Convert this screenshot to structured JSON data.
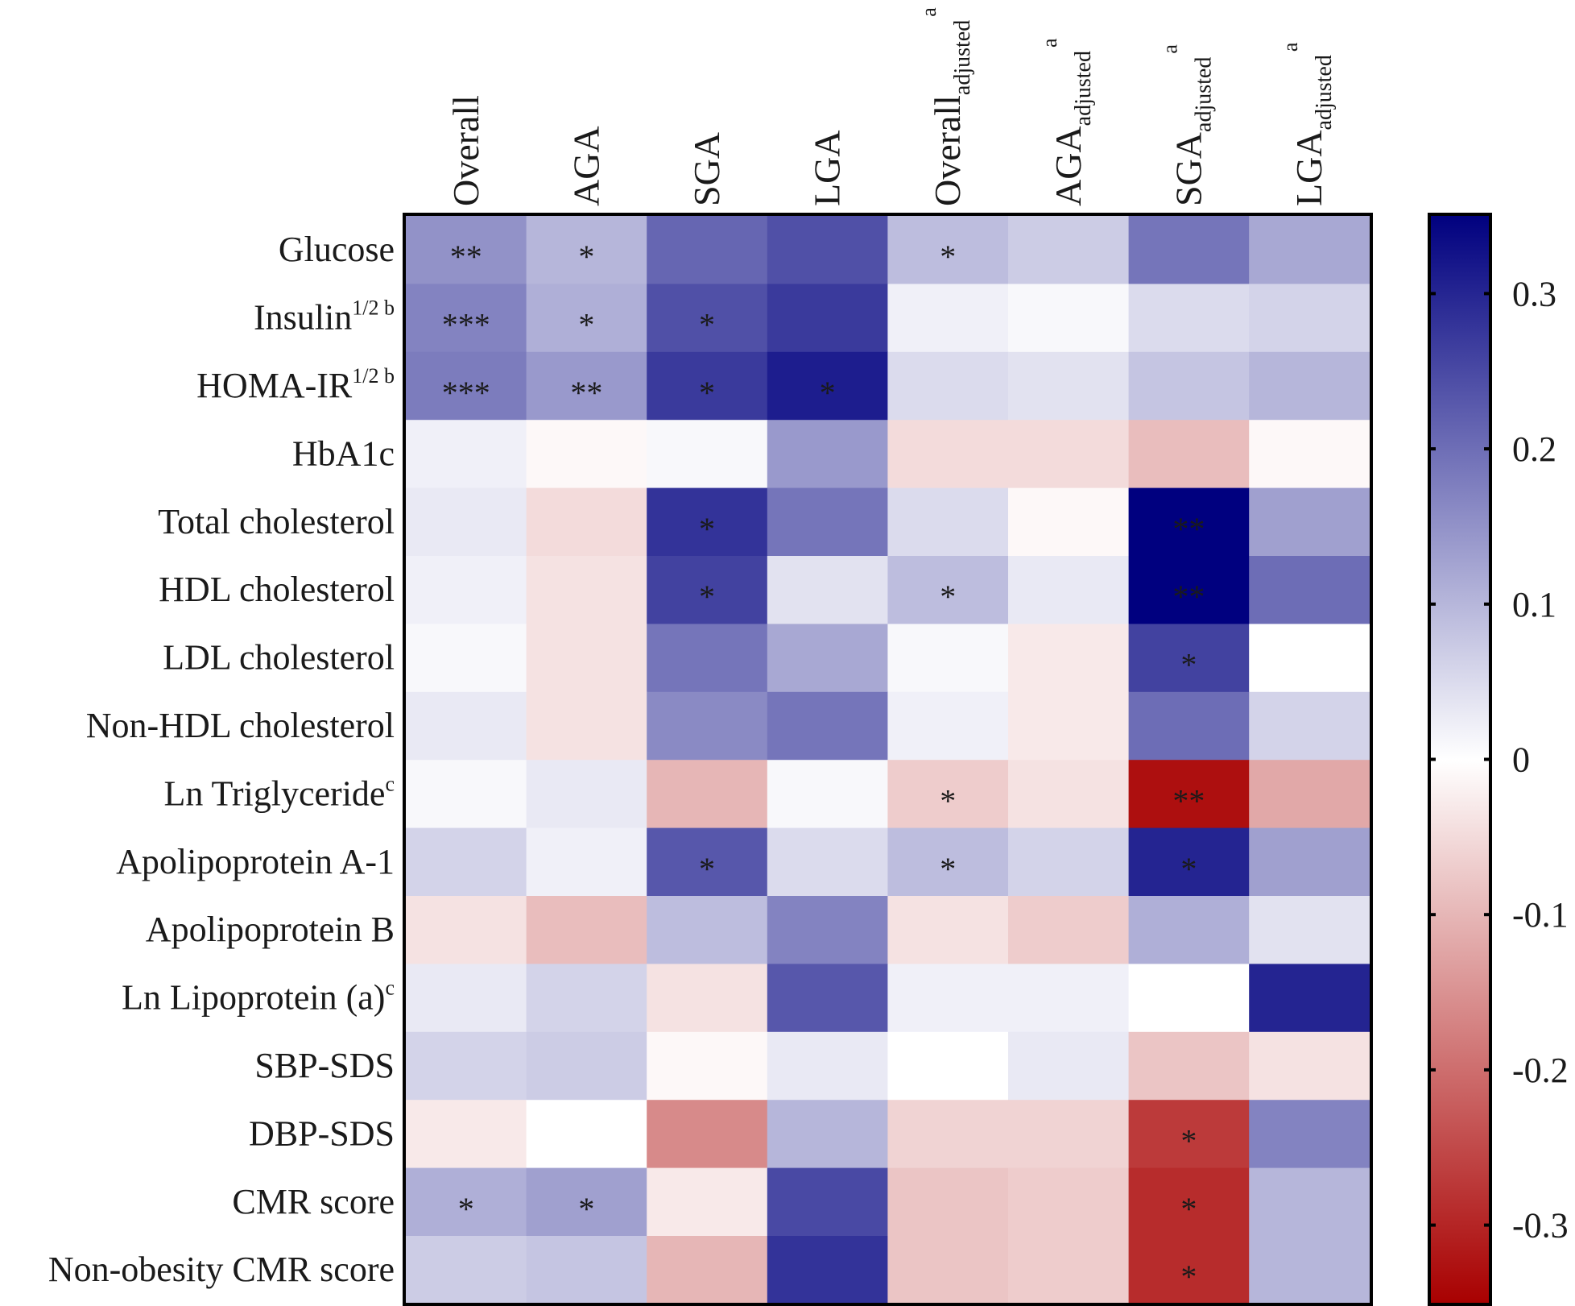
{
  "chart_data": {
    "type": "heatmap",
    "title": "",
    "columns": [
      {
        "label": "Overall",
        "sub": "",
        "sup": ""
      },
      {
        "label": "AGA",
        "sub": "",
        "sup": ""
      },
      {
        "label": "SGA",
        "sub": "",
        "sup": ""
      },
      {
        "label": "LGA",
        "sub": "",
        "sup": ""
      },
      {
        "label": "Overall",
        "sub": "adjusted",
        "sup": "a"
      },
      {
        "label": "AGA",
        "sub": "adjusted",
        "sup": "a"
      },
      {
        "label": "SGA",
        "sub": "adjusted",
        "sup": "a"
      },
      {
        "label": "LGA",
        "sub": "adjusted",
        "sup": "a"
      }
    ],
    "rows": [
      {
        "label": "Glucose",
        "sup": ""
      },
      {
        "label": "Insulin",
        "sup": "1/2 b"
      },
      {
        "label": "HOMA-IR",
        "sup": "1/2 b"
      },
      {
        "label": "HbA1c",
        "sup": ""
      },
      {
        "label": "Total cholesterol",
        "sup": ""
      },
      {
        "label": "HDL cholesterol",
        "sup": ""
      },
      {
        "label": "LDL cholesterol",
        "sup": ""
      },
      {
        "label": "Non-HDL cholesterol",
        "sup": ""
      },
      {
        "label": "Ln Triglyceride",
        "sup": "c"
      },
      {
        "label": "Apolipoprotein A-1",
        "sup": ""
      },
      {
        "label": "Apolipoprotein B",
        "sup": ""
      },
      {
        "label": "Ln Lipoprotein (a)",
        "sup": "c"
      },
      {
        "label": "SBP-SDS",
        "sup": ""
      },
      {
        "label": "DBP-SDS",
        "sup": ""
      },
      {
        "label": "CMR score",
        "sup": ""
      },
      {
        "label": "Non-obesity CMR score",
        "sup": ""
      }
    ],
    "values": [
      [
        0.15,
        0.1,
        0.21,
        0.24,
        0.09,
        0.07,
        0.19,
        0.12
      ],
      [
        0.17,
        0.11,
        0.24,
        0.27,
        0.02,
        0.01,
        0.05,
        0.06
      ],
      [
        0.18,
        0.14,
        0.27,
        0.31,
        0.05,
        0.04,
        0.08,
        0.1
      ],
      [
        0.02,
        -0.01,
        0.01,
        0.14,
        -0.05,
        -0.05,
        -0.09,
        -0.01
      ],
      [
        0.03,
        -0.05,
        0.28,
        0.19,
        0.05,
        -0.01,
        0.35,
        0.13
      ],
      [
        0.02,
        -0.04,
        0.26,
        0.04,
        0.09,
        0.03,
        0.35,
        0.2
      ],
      [
        0.01,
        -0.04,
        0.19,
        0.12,
        0.01,
        -0.03,
        0.26,
        0.0
      ],
      [
        0.03,
        -0.04,
        0.16,
        0.19,
        0.02,
        -0.03,
        0.2,
        0.06
      ],
      [
        0.01,
        0.03,
        -0.1,
        0.01,
        -0.07,
        -0.04,
        -0.33,
        -0.12
      ],
      [
        0.06,
        0.02,
        0.23,
        0.05,
        0.09,
        0.06,
        0.3,
        0.13
      ],
      [
        -0.04,
        -0.09,
        0.09,
        0.17,
        -0.04,
        -0.07,
        0.11,
        0.04
      ],
      [
        0.03,
        0.06,
        -0.04,
        0.23,
        0.02,
        0.02,
        0.0,
        0.3
      ],
      [
        0.06,
        0.07,
        -0.01,
        0.03,
        0.0,
        0.03,
        -0.08,
        -0.04
      ],
      [
        -0.03,
        0.0,
        -0.16,
        0.1,
        -0.06,
        -0.06,
        -0.27,
        0.17
      ],
      [
        0.11,
        0.13,
        -0.03,
        0.25,
        -0.08,
        -0.07,
        -0.29,
        0.1
      ],
      [
        0.07,
        0.08,
        -0.1,
        0.28,
        -0.08,
        -0.07,
        -0.29,
        0.1
      ]
    ],
    "annotations": [
      [
        "**",
        "*",
        "",
        "",
        "*",
        "",
        "",
        ""
      ],
      [
        "***",
        "*",
        "*",
        "",
        "",
        "",
        "",
        ""
      ],
      [
        "***",
        "**",
        "*",
        "*",
        "",
        "",
        "",
        ""
      ],
      [
        "",
        "",
        "",
        "",
        "",
        "",
        "",
        ""
      ],
      [
        "",
        "",
        "*",
        "",
        "",
        "",
        "**",
        ""
      ],
      [
        "",
        "",
        "*",
        "",
        "*",
        "",
        "**",
        ""
      ],
      [
        "",
        "",
        "",
        "",
        "",
        "",
        "*",
        ""
      ],
      [
        "",
        "",
        "",
        "",
        "",
        "",
        "",
        ""
      ],
      [
        "",
        "",
        "",
        "",
        "*",
        "",
        "**",
        ""
      ],
      [
        "",
        "",
        "*",
        "",
        "*",
        "",
        "*",
        ""
      ],
      [
        "",
        "",
        "",
        "",
        "",
        "",
        "",
        ""
      ],
      [
        "",
        "",
        "",
        "",
        "",
        "",
        "",
        ""
      ],
      [
        "",
        "",
        "",
        "",
        "",
        "",
        "",
        ""
      ],
      [
        "",
        "",
        "",
        "",
        "",
        "",
        "*",
        ""
      ],
      [
        "*",
        "*",
        "",
        "",
        "",
        "",
        "*",
        ""
      ],
      [
        "",
        "",
        "",
        "",
        "",
        "",
        "*",
        ""
      ]
    ],
    "colorbar": {
      "range": [
        -0.35,
        0.35
      ],
      "ticks": [
        0.3,
        0.2,
        0.1,
        0,
        -0.1,
        -0.2,
        -0.3
      ],
      "tick_labels": [
        "0.3",
        "0.2",
        "0.1",
        "0",
        "-0.1",
        "-0.2",
        "-0.3"
      ],
      "colors": {
        "high": "#00007f",
        "mid": "#ffffff",
        "low": "#a80000"
      }
    }
  }
}
